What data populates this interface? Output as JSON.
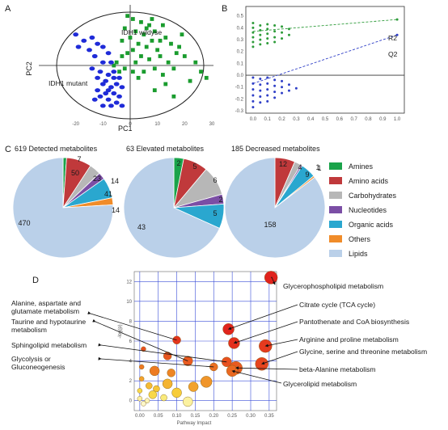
{
  "panel_letters": [
    "A",
    "B",
    "C",
    "D"
  ],
  "chart_data": [
    {
      "panel": "A",
      "type": "scatter",
      "xlabel": "PC1",
      "ylabel": "PC2",
      "xlim": [
        -30,
        30
      ],
      "ylim": [
        -18,
        18
      ],
      "x_ticks": [
        "-20",
        "-10",
        "0",
        "10",
        "20",
        "30"
      ],
      "annotations": [
        "IDH1 wildyse",
        "IDH1 mutant"
      ],
      "colors": {
        "wildtype": "#1a9c2e",
        "mutant": "#1f2bd8"
      },
      "series": [
        {
          "group": "wildtype",
          "points": [
            [
              1,
              15
            ],
            [
              4,
              14
            ],
            [
              7,
              13
            ],
            [
              -2,
              12
            ],
            [
              2,
              11
            ],
            [
              9,
              11
            ],
            [
              12,
              13
            ],
            [
              5,
              10
            ],
            [
              0,
              9
            ],
            [
              -3,
              8
            ],
            [
              3,
              7
            ],
            [
              8,
              8
            ],
            [
              13,
              9
            ],
            [
              15,
              7
            ],
            [
              6,
              6
            ],
            [
              10,
              5
            ],
            [
              1,
              5
            ],
            [
              -1,
              4
            ],
            [
              4,
              3
            ],
            [
              -3,
              3
            ],
            [
              11,
              3
            ],
            [
              17,
              4
            ],
            [
              20,
              3
            ],
            [
              24,
              1
            ],
            [
              7,
              2
            ],
            [
              2,
              1
            ],
            [
              -5,
              1
            ],
            [
              14,
              1
            ],
            [
              9,
              -1
            ],
            [
              5,
              -2
            ],
            [
              1,
              -2
            ],
            [
              -2,
              -1
            ],
            [
              16,
              -1
            ],
            [
              12,
              -3
            ],
            [
              26,
              -2
            ],
            [
              22,
              -5
            ],
            [
              28,
              -4
            ],
            [
              3,
              -4
            ],
            [
              -4,
              -2
            ],
            [
              -6,
              0
            ],
            [
              19,
              10
            ],
            [
              8,
              15
            ],
            [
              -1,
              16
            ],
            [
              6,
              12
            ],
            [
              11,
              8
            ],
            [
              18,
              6
            ],
            [
              13,
              -6
            ],
            [
              9,
              -8
            ],
            [
              16,
              -10
            ]
          ]
        },
        {
          "group": "mutant",
          "points": [
            [
              -20,
              10
            ],
            [
              -17,
              8
            ],
            [
              -14,
              9
            ],
            [
              -12,
              7
            ],
            [
              -19,
              6
            ],
            [
              -15,
              5
            ],
            [
              -10,
              6
            ],
            [
              -8,
              4
            ],
            [
              -13,
              3
            ],
            [
              -10,
              1
            ],
            [
              -7,
              1
            ],
            [
              -14,
              -1
            ],
            [
              -11,
              -2
            ],
            [
              -8,
              -3
            ],
            [
              -12,
              -4
            ],
            [
              -9,
              -5
            ],
            [
              -6,
              -4
            ],
            [
              -10,
              -6
            ],
            [
              -7,
              -7
            ],
            [
              -12,
              -8
            ],
            [
              -9,
              -9
            ],
            [
              -6,
              -9
            ],
            [
              -11,
              -10
            ],
            [
              -8,
              -11
            ],
            [
              -5,
              -12
            ],
            [
              -10,
              -13
            ],
            [
              -7,
              -13
            ],
            [
              -4,
              -10
            ],
            [
              -3,
              -7
            ],
            [
              -5,
              -6
            ],
            [
              -6,
              -2
            ],
            [
              -4,
              -4
            ],
            [
              -8,
              -8
            ],
            [
              -13,
              -11
            ],
            [
              -3,
              -13
            ]
          ]
        }
      ]
    },
    {
      "panel": "B",
      "type": "scatter",
      "xlim": [
        -0.05,
        1.05
      ],
      "ylim": [
        -0.32,
        0.58
      ],
      "x_ticks": [
        "0.0",
        "0.1",
        "0.2",
        "0.3",
        "0.4",
        "0.5",
        "0.6",
        "0.7",
        "0.8",
        "0.9",
        "1.0"
      ],
      "y_ticks": [
        "0.5",
        "0.4",
        "0.3",
        "0.2",
        "0.1",
        "0.0",
        "-0.1",
        "-0.2",
        "-0.3"
      ],
      "lines": [
        {
          "name": "R2",
          "from": [
            0.0,
            0.37
          ],
          "to": [
            1.0,
            0.47
          ],
          "color": "#2e9c3a"
        },
        {
          "name": "Q2",
          "from": [
            0.0,
            -0.07
          ],
          "to": [
            1.0,
            0.34
          ],
          "color": "#2f3fc7"
        }
      ],
      "series": [
        {
          "name": "R2",
          "color": "#2e9c3a",
          "points": [
            [
              0.0,
              0.44
            ],
            [
              0.0,
              0.4
            ],
            [
              0.0,
              0.36
            ],
            [
              0.0,
              0.32
            ],
            [
              0.0,
              0.28
            ],
            [
              0.0,
              0.24
            ],
            [
              0.05,
              0.42
            ],
            [
              0.05,
              0.38
            ],
            [
              0.05,
              0.34
            ],
            [
              0.05,
              0.3
            ],
            [
              0.05,
              0.26
            ],
            [
              0.1,
              0.43
            ],
            [
              0.1,
              0.39
            ],
            [
              0.1,
              0.35
            ],
            [
              0.1,
              0.31
            ],
            [
              0.1,
              0.27
            ],
            [
              0.15,
              0.42
            ],
            [
              0.15,
              0.37
            ],
            [
              0.15,
              0.32
            ],
            [
              0.15,
              0.28
            ],
            [
              0.2,
              0.41
            ],
            [
              0.2,
              0.36
            ],
            [
              0.2,
              0.31
            ],
            [
              0.25,
              0.39
            ],
            [
              0.25,
              0.34
            ],
            [
              1.0,
              0.47
            ]
          ]
        },
        {
          "name": "Q2",
          "color": "#2f3fc7",
          "points": [
            [
              0.0,
              -0.02
            ],
            [
              0.0,
              -0.07
            ],
            [
              0.0,
              -0.12
            ],
            [
              0.0,
              -0.17
            ],
            [
              0.0,
              -0.22
            ],
            [
              0.0,
              -0.27
            ],
            [
              0.05,
              -0.03
            ],
            [
              0.05,
              -0.08
            ],
            [
              0.05,
              -0.13
            ],
            [
              0.05,
              -0.18
            ],
            [
              0.05,
              -0.23
            ],
            [
              0.1,
              -0.02
            ],
            [
              0.1,
              -0.07
            ],
            [
              0.1,
              -0.12
            ],
            [
              0.1,
              -0.17
            ],
            [
              0.1,
              -0.22
            ],
            [
              0.15,
              -0.04
            ],
            [
              0.15,
              -0.09
            ],
            [
              0.15,
              -0.14
            ],
            [
              0.15,
              -0.19
            ],
            [
              0.2,
              -0.05
            ],
            [
              0.2,
              -0.1
            ],
            [
              0.2,
              -0.15
            ],
            [
              0.25,
              -0.08
            ],
            [
              0.25,
              -0.13
            ],
            [
              0.3,
              -0.11
            ],
            [
              1.0,
              0.34
            ]
          ]
        }
      ],
      "hline": 0.0
    },
    {
      "panel": "C",
      "type": "pie",
      "categories": [
        "Amines",
        "Amino acids",
        "Carbohydrates",
        "Nucleotides",
        "Organic acids",
        "Others",
        "Lipids"
      ],
      "colors": [
        "#1aa34a",
        "#c0393b",
        "#b7b7b7",
        "#7b4ea5",
        "#2aa7cf",
        "#f08c2a",
        "#bad0e9"
      ],
      "pies": [
        {
          "title": "619 Detected metabolites",
          "values": [
            7,
            50,
            23,
            14,
            41,
            14,
            470
          ],
          "labels": [
            "7",
            "50",
            "23",
            "14",
            "41",
            "14",
            "470"
          ]
        },
        {
          "title": "63 Elevated metabolites",
          "values": [
            2,
            5,
            6,
            2,
            5,
            0,
            43
          ],
          "labels": [
            "2",
            "5",
            "6",
            "2",
            "5",
            "",
            "43"
          ]
        },
        {
          "title": "185 Decreased metabolites",
          "values": [
            0,
            12,
            4,
            1,
            9,
            1,
            158
          ],
          "labels": [
            "",
            "12",
            "4",
            "1",
            "9",
            "1",
            "158"
          ]
        }
      ]
    },
    {
      "panel": "D",
      "type": "scatter",
      "xlabel": "Pathway Impact",
      "ylabel": "-log(p)",
      "xlim": [
        -0.015,
        0.37
      ],
      "ylim": [
        -1,
        13
      ],
      "x_ticks": [
        0.0,
        0.05,
        0.1,
        0.15,
        0.2,
        0.25,
        0.3,
        0.35
      ],
      "x_tick_labels": [
        "0.00",
        "0.05",
        "0.10",
        "0.15",
        "0.20",
        "0.25",
        "0.30",
        "0.35"
      ],
      "y_ticks": [
        0,
        2,
        4,
        6,
        8,
        10,
        12
      ],
      "y_tick_labels": [
        "0",
        "2",
        "4",
        "6",
        "8",
        "10",
        "12"
      ],
      "points": [
        {
          "x": 0.355,
          "y": 12.4,
          "r": 8,
          "color": "#e0221c"
        },
        {
          "x": 0.24,
          "y": 7.2,
          "r": 7,
          "color": "#e0241d"
        },
        {
          "x": 0.255,
          "y": 5.8,
          "r": 7,
          "color": "#e3301d"
        },
        {
          "x": 0.1,
          "y": 6.1,
          "r": 5,
          "color": "#e3351e"
        },
        {
          "x": 0.34,
          "y": 5.5,
          "r": 8,
          "color": "#e53a1e"
        },
        {
          "x": 0.33,
          "y": 3.7,
          "r": 8,
          "color": "#e6441e"
        },
        {
          "x": 0.235,
          "y": 3.9,
          "r": 6,
          "color": "#e8511f"
        },
        {
          "x": 0.26,
          "y": 3.3,
          "r": 8,
          "color": "#e85a20"
        },
        {
          "x": 0.25,
          "y": 3.0,
          "r": 7,
          "color": "#ea6821"
        },
        {
          "x": 0.075,
          "y": 4.5,
          "r": 5,
          "color": "#e8561f"
        },
        {
          "x": 0.13,
          "y": 4.0,
          "r": 6,
          "color": "#e95a20"
        },
        {
          "x": 0.2,
          "y": 3.4,
          "r": 5,
          "color": "#eb6f22"
        },
        {
          "x": 0.04,
          "y": 3.0,
          "r": 6,
          "color": "#ed7b23"
        },
        {
          "x": 0.085,
          "y": 2.8,
          "r": 5,
          "color": "#ee8524"
        },
        {
          "x": 0.18,
          "y": 1.9,
          "r": 7,
          "color": "#f0952a"
        },
        {
          "x": 0.145,
          "y": 1.4,
          "r": 6,
          "color": "#f2a22e"
        },
        {
          "x": 0.075,
          "y": 1.7,
          "r": 6,
          "color": "#f4b432"
        },
        {
          "x": 0.1,
          "y": 0.8,
          "r": 6,
          "color": "#f7cc39"
        },
        {
          "x": 0.025,
          "y": 1.5,
          "r": 4,
          "color": "#f5bb34"
        },
        {
          "x": 0.045,
          "y": 1.2,
          "r": 4,
          "color": "#f6c537"
        },
        {
          "x": 0.035,
          "y": 0.6,
          "r": 5,
          "color": "#f8d84a"
        },
        {
          "x": 0.065,
          "y": 0.3,
          "r": 4,
          "color": "#faea7a"
        },
        {
          "x": 0.13,
          "y": -0.1,
          "r": 6,
          "color": "#fbf1a0"
        },
        {
          "x": 0.01,
          "y": 5.2,
          "r": 3,
          "color": "#e8501f"
        },
        {
          "x": 0.005,
          "y": 3.4,
          "r": 3,
          "color": "#ed7a23"
        },
        {
          "x": 0.005,
          "y": 2.2,
          "r": 3,
          "color": "#f2a22e"
        },
        {
          "x": 0.0,
          "y": 1.0,
          "r": 3,
          "color": "#f8d84a"
        },
        {
          "x": 0.0,
          "y": 0.2,
          "r": 3,
          "color": "#fbf0a0"
        },
        {
          "x": 0.02,
          "y": 0.0,
          "r": 3,
          "color": "#fcf4b6"
        },
        {
          "x": 0.01,
          "y": -0.3,
          "r": 3,
          "color": "#fdf7c8"
        }
      ],
      "annotations": [
        {
          "text": [
            "Glycerophospholipid metabolism"
          ],
          "target": [
            0.355,
            12.4
          ]
        },
        {
          "text": [
            "Alanine, aspartate and",
            "glutamate metabolism"
          ],
          "target": [
            0.1,
            6.1
          ]
        },
        {
          "text": [
            "Citrate cycle (TCA cycle)"
          ],
          "target": [
            0.24,
            7.2
          ]
        },
        {
          "text": [
            "Pantothenate and CoA biosynthesis"
          ],
          "target": [
            0.255,
            5.8
          ]
        },
        {
          "text": [
            "Taurine and hypotaurine",
            "metabolism"
          ],
          "target": [
            0.13,
            4.0
          ]
        },
        {
          "text": [
            "Arginine and proline metabolism"
          ],
          "target": [
            0.34,
            5.5
          ]
        },
        {
          "text": [
            "Glycine, serine and threonine metabolism"
          ],
          "target": [
            0.33,
            3.7
          ]
        },
        {
          "text": [
            "Sphingolipid metabolism"
          ],
          "target": [
            0.235,
            3.9
          ]
        },
        {
          "text": [
            "beta-Alanine metabolism"
          ],
          "target": [
            0.26,
            3.3
          ]
        },
        {
          "text": [
            "Glycolysis or",
            "Gluconeogenesis"
          ],
          "target": [
            0.2,
            3.4
          ]
        },
        {
          "text": [
            "Glycerolipid metabolism"
          ],
          "target": [
            0.25,
            3.0
          ]
        }
      ]
    }
  ]
}
